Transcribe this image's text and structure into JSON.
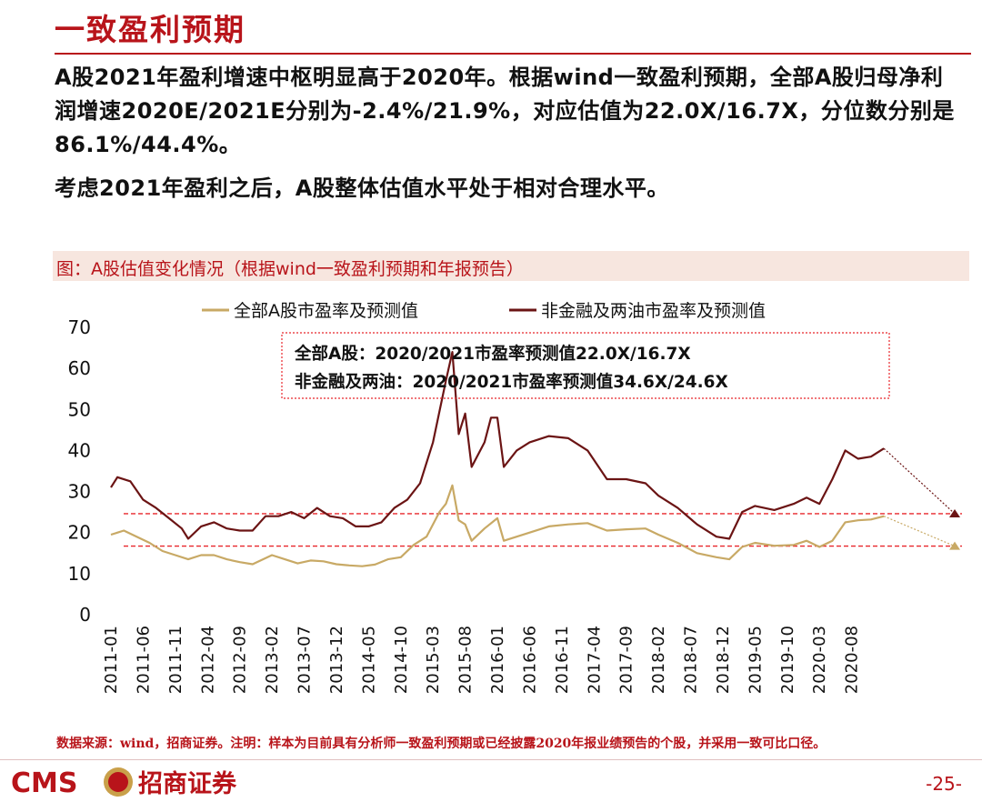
{
  "slide": {
    "title": "一致盈利预期",
    "paragraph_1": "A股2021年盈利增速中枢明显高于2020年。根据wind一致盈利预期，全部A股归母净利润增速2020E/2021E分别为-2.4%/21.9%，对应估值为22.0X/16.7X，分位数分别是86.1%/44.4%。",
    "paragraph_2": "考虑2021年盈利之后，A股整体估值水平处于相对合理水平。"
  },
  "figure": {
    "caption": "图：A股估值变化情况（根据wind一致盈利预期和年报预告）",
    "annotation_lines": [
      "全部A股：2020/2021市盈率预测值22.0X/16.7X",
      "非金融及两油：2020/2021市盈率预测值34.6X/24.6X"
    ]
  },
  "footer": {
    "footnote": "数据来源：wind，招商证券。注明：样本为目前具有分析师一致盈利预期或已经披露2020年报业绩预告的个股，并采用一致可比口径。",
    "logo_text": "CMS",
    "logo_cn": "招商证券",
    "page_number": "-25-"
  },
  "colors": {
    "brand_red": "#B8141A",
    "series_all_a": "#C8A965",
    "series_non_fin": "#6B1414",
    "ref_line": "#E8262B"
  },
  "chart_data": {
    "type": "line",
    "xlabel": "",
    "ylabel": "",
    "ylim": [
      0,
      70
    ],
    "yticks": [
      0,
      10,
      20,
      30,
      40,
      50,
      60,
      70
    ],
    "x_tick_labels": [
      "2011-01",
      "2011-06",
      "2011-11",
      "2012-04",
      "2012-09",
      "2013-02",
      "2013-07",
      "2013-12",
      "2014-05",
      "2014-10",
      "2015-03",
      "2015-08",
      "2016-01",
      "2016-06",
      "2016-11",
      "2017-04",
      "2017-09",
      "2018-02",
      "2018-07",
      "2018-12",
      "2019-05",
      "2019-10",
      "2020-03",
      "2020-08"
    ],
    "legend_position": "top",
    "grid": false,
    "series": [
      {
        "name": "全部A股市盈率及预测值",
        "color": "#C8A965",
        "points": [
          [
            "2011-01",
            19.5
          ],
          [
            "2011-03",
            20.5
          ],
          [
            "2011-05",
            19
          ],
          [
            "2011-07",
            17.5
          ],
          [
            "2011-09",
            15.5
          ],
          [
            "2011-11",
            14.5
          ],
          [
            "2012-01",
            13.5
          ],
          [
            "2012-03",
            14.5
          ],
          [
            "2012-05",
            14.5
          ],
          [
            "2012-07",
            13.5
          ],
          [
            "2012-09",
            12.8
          ],
          [
            "2012-11",
            12.3
          ],
          [
            "2013-02",
            14.5
          ],
          [
            "2013-04",
            13.5
          ],
          [
            "2013-06",
            12.5
          ],
          [
            "2013-08",
            13.2
          ],
          [
            "2013-10",
            13
          ],
          [
            "2013-12",
            12.3
          ],
          [
            "2014-02",
            12
          ],
          [
            "2014-04",
            11.8
          ],
          [
            "2014-06",
            12.2
          ],
          [
            "2014-08",
            13.5
          ],
          [
            "2014-10",
            14
          ],
          [
            "2014-12",
            17
          ],
          [
            "2015-02",
            19
          ],
          [
            "2015-04",
            25
          ],
          [
            "2015-05",
            27
          ],
          [
            "2015-06",
            31.5
          ],
          [
            "2015-07",
            23
          ],
          [
            "2015-08",
            22
          ],
          [
            "2015-09",
            18
          ],
          [
            "2015-11",
            21
          ],
          [
            "2016-01",
            23.5
          ],
          [
            "2016-02",
            18
          ],
          [
            "2016-04",
            19
          ],
          [
            "2016-06",
            20
          ],
          [
            "2016-09",
            21.5
          ],
          [
            "2016-12",
            22
          ],
          [
            "2017-03",
            22.3
          ],
          [
            "2017-06",
            20.5
          ],
          [
            "2017-09",
            20.8
          ],
          [
            "2017-12",
            21
          ],
          [
            "2018-02",
            19.5
          ],
          [
            "2018-05",
            17.5
          ],
          [
            "2018-08",
            15
          ],
          [
            "2018-11",
            14
          ],
          [
            "2019-01",
            13.5
          ],
          [
            "2019-03",
            16.5
          ],
          [
            "2019-05",
            17.5
          ],
          [
            "2019-08",
            16.8
          ],
          [
            "2019-11",
            17
          ],
          [
            "2020-01",
            18
          ],
          [
            "2020-03",
            16.5
          ],
          [
            "2020-05",
            18
          ],
          [
            "2020-07",
            22.5
          ],
          [
            "2020-09",
            23
          ],
          [
            "2020-11",
            23.2
          ],
          [
            "2021-01",
            24
          ]
        ],
        "forecast": [
          [
            "2021-01",
            24
          ],
          [
            "2021-12",
            16.7
          ]
        ]
      },
      {
        "name": "非金融及两油市盈率及预测值",
        "color": "#6B1414",
        "points": [
          [
            "2011-01",
            31
          ],
          [
            "2011-02",
            33.5
          ],
          [
            "2011-04",
            32.5
          ],
          [
            "2011-06",
            28
          ],
          [
            "2011-08",
            26
          ],
          [
            "2011-10",
            23.5
          ],
          [
            "2011-12",
            21
          ],
          [
            "2012-01",
            18.5
          ],
          [
            "2012-03",
            21.5
          ],
          [
            "2012-05",
            22.5
          ],
          [
            "2012-07",
            21
          ],
          [
            "2012-09",
            20.5
          ],
          [
            "2012-11",
            20.5
          ],
          [
            "2013-01",
            24
          ],
          [
            "2013-03",
            24
          ],
          [
            "2013-05",
            25
          ],
          [
            "2013-07",
            23.5
          ],
          [
            "2013-09",
            26
          ],
          [
            "2013-11",
            24
          ],
          [
            "2014-01",
            23.5
          ],
          [
            "2014-03",
            21.5
          ],
          [
            "2014-05",
            21.5
          ],
          [
            "2014-07",
            22.5
          ],
          [
            "2014-09",
            26
          ],
          [
            "2014-11",
            28
          ],
          [
            "2015-01",
            32
          ],
          [
            "2015-03",
            42
          ],
          [
            "2015-05",
            57
          ],
          [
            "2015-06",
            64
          ],
          [
            "2015-07",
            44
          ],
          [
            "2015-08",
            49
          ],
          [
            "2015-09",
            36
          ],
          [
            "2015-11",
            42
          ],
          [
            "2015-12",
            48
          ],
          [
            "2016-01",
            48
          ],
          [
            "2016-02",
            36
          ],
          [
            "2016-04",
            40
          ],
          [
            "2016-06",
            42
          ],
          [
            "2016-09",
            43.5
          ],
          [
            "2016-12",
            43
          ],
          [
            "2017-03",
            40
          ],
          [
            "2017-06",
            33
          ],
          [
            "2017-09",
            33
          ],
          [
            "2017-12",
            32
          ],
          [
            "2018-02",
            29
          ],
          [
            "2018-05",
            26
          ],
          [
            "2018-08",
            22
          ],
          [
            "2018-11",
            19
          ],
          [
            "2019-01",
            18.5
          ],
          [
            "2019-03",
            25
          ],
          [
            "2019-05",
            26.5
          ],
          [
            "2019-08",
            25.5
          ],
          [
            "2019-11",
            27
          ],
          [
            "2020-01",
            28.5
          ],
          [
            "2020-03",
            27
          ],
          [
            "2020-05",
            33
          ],
          [
            "2020-07",
            40
          ],
          [
            "2020-09",
            38
          ],
          [
            "2020-11",
            38.5
          ],
          [
            "2021-01",
            40.5
          ]
        ],
        "forecast": [
          [
            "2021-01",
            40.5
          ],
          [
            "2021-12",
            24.6
          ]
        ]
      }
    ],
    "reference_lines": [
      {
        "y": 16.7,
        "color": "#E8262B",
        "style": "dashed"
      },
      {
        "y": 24.6,
        "color": "#E8262B",
        "style": "dashed"
      }
    ]
  }
}
